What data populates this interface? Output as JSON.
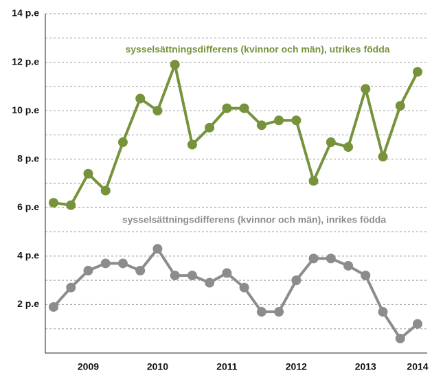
{
  "chart_data": {
    "type": "line",
    "categories": [
      null,
      null,
      "2009",
      null,
      null,
      null,
      "2010",
      null,
      null,
      null,
      "2011",
      null,
      null,
      null,
      "2012",
      null,
      null,
      null,
      "2013",
      null,
      null,
      "2014"
    ],
    "series": [
      {
        "name": "sysselsättningsdifferens (kvinnor och män), utrikes födda",
        "color": "#76933c",
        "values": [
          6.2,
          6.1,
          7.4,
          6.7,
          8.7,
          10.5,
          10.0,
          11.9,
          8.6,
          9.3,
          10.1,
          10.1,
          9.4,
          9.6,
          9.6,
          7.1,
          8.7,
          8.5,
          10.9,
          8.1,
          10.2,
          11.6
        ]
      },
      {
        "name": "sysselsättningsdifferens (kvinnor och män), inrikes födda",
        "color": "#8c8c8c",
        "values": [
          1.9,
          2.7,
          3.4,
          3.7,
          3.7,
          3.4,
          4.3,
          3.2,
          3.2,
          2.9,
          3.3,
          2.7,
          1.7,
          1.7,
          3.0,
          3.9,
          3.9,
          3.6,
          3.2,
          1.7,
          0.6,
          1.2
        ]
      }
    ],
    "ylim": [
      0,
      14
    ],
    "yticks": [
      {
        "value": 2,
        "label": "2 p.e"
      },
      {
        "value": 4,
        "label": "4 p.e"
      },
      {
        "value": 6,
        "label": "6 p.e"
      },
      {
        "value": 8,
        "label": "8 p.e"
      },
      {
        "value": 10,
        "label": "10 p.e"
      },
      {
        "value": 12,
        "label": "12 p.e"
      },
      {
        "value": 14,
        "label": "14 p.e"
      }
    ],
    "minor_grid": [
      1,
      3,
      5,
      7,
      9,
      11,
      13
    ],
    "grid": true
  }
}
